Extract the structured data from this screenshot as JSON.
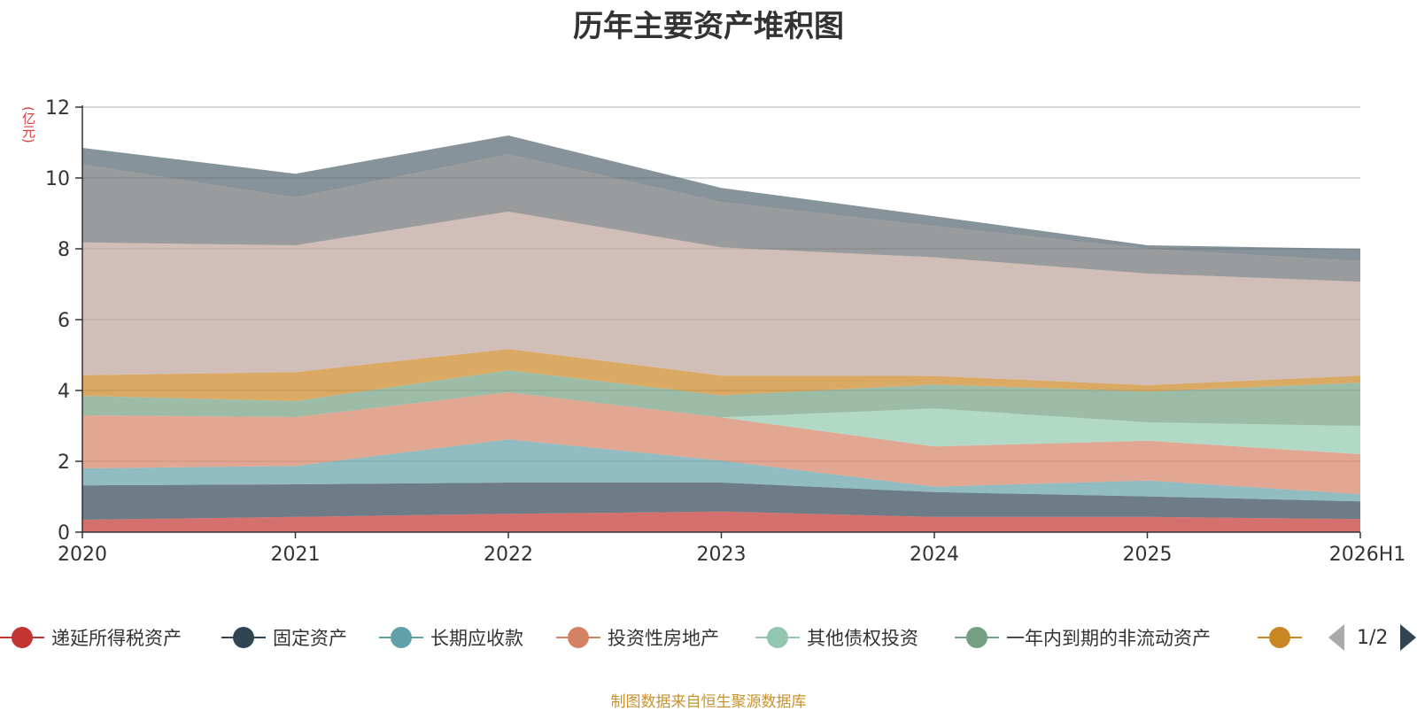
{
  "title": "历年主要资产堆积图",
  "unit_label": "(亿元)",
  "source_note": "制图数据来自恒生聚源数据库",
  "pager": {
    "text": "1/2"
  },
  "chart_data": {
    "type": "area",
    "stacked": true,
    "title": "历年主要资产堆积图",
    "ylabel": "(亿元)",
    "xlabel": "",
    "categories": [
      "2020",
      "2021",
      "2022",
      "2023",
      "2024",
      "2025",
      "2026H1"
    ],
    "ylim": [
      0,
      12
    ],
    "yticks": [
      0,
      2,
      4,
      6,
      8,
      10,
      12
    ],
    "grid": true,
    "legend_position": "bottom",
    "series": [
      {
        "name": "递延所得税资产",
        "color": "#c23531",
        "values": [
          0.35,
          0.43,
          0.52,
          0.58,
          0.43,
          0.43,
          0.37
        ]
      },
      {
        "name": "固定资产",
        "color": "#2f4554",
        "values": [
          0.97,
          0.92,
          0.88,
          0.82,
          0.7,
          0.58,
          0.5
        ]
      },
      {
        "name": "长期应收款",
        "color": "#61a0a8",
        "values": [
          0.48,
          0.52,
          1.22,
          0.62,
          0.15,
          0.45,
          0.2
        ]
      },
      {
        "name": "投资性房地产",
        "color": "#d48265",
        "values": [
          1.5,
          1.38,
          1.33,
          1.22,
          1.14,
          1.12,
          1.13
        ]
      },
      {
        "name": "其他债权投资",
        "color": "#91c7ae",
        "values": [
          0.0,
          0.0,
          0.0,
          0.0,
          1.07,
          0.52,
          0.8
        ]
      },
      {
        "name": "一年内到期的非流动资产",
        "color": "#749f83",
        "values": [
          0.55,
          0.45,
          0.62,
          0.62,
          0.68,
          0.87,
          1.22
        ]
      },
      {
        "name": "",
        "color": "#ca8622",
        "values": [
          0.58,
          0.82,
          0.6,
          0.56,
          0.24,
          0.18,
          0.2
        ]
      },
      {
        "name": "",
        "color": "#bda29a",
        "values": [
          3.75,
          3.58,
          3.88,
          3.62,
          3.35,
          3.15,
          2.65
        ]
      },
      {
        "name": "",
        "color": "#6e7074",
        "values": [
          2.2,
          1.35,
          1.62,
          1.28,
          0.88,
          0.7,
          0.58
        ]
      },
      {
        "name": "",
        "color": "#546570",
        "values": [
          0.47,
          0.67,
          0.53,
          0.4,
          0.28,
          0.1,
          0.35
        ]
      }
    ]
  }
}
